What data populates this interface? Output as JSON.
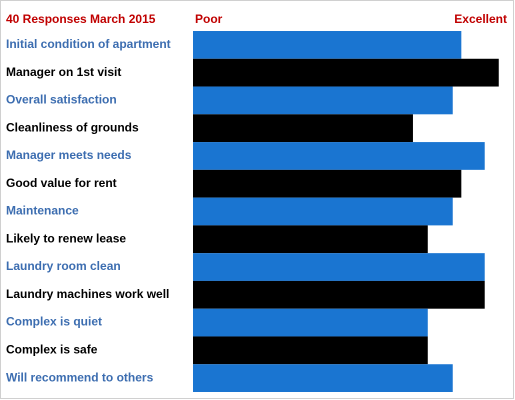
{
  "chart_data": {
    "type": "barh",
    "title": "40 Responses March 2015",
    "xlabel_left": "Poor",
    "xlabel_right": "Excellent",
    "categories": [
      "Initial condition of apartment",
      "Manager on 1st visit",
      "Overall satisfaction",
      "Cleanliness of grounds",
      "Manager meets needs",
      "Good value for rent",
      "Maintenance",
      "Likely to renew lease",
      "Laundry room clean",
      "Laundry machines work well",
      "Complex is quiet",
      "Complex is safe",
      "Will recommend to others"
    ],
    "values": [
      4.44,
      4.92,
      4.33,
      3.82,
      4.74,
      4.44,
      4.33,
      4.01,
      4.74,
      4.74,
      4.01,
      4.01,
      4.33
    ],
    "colors": [
      "#1a75d1",
      "#000000",
      "#1a75d1",
      "#000000",
      "#1a75d1",
      "#000000",
      "#1a75d1",
      "#000000",
      "#1a75d1",
      "#000000",
      "#1a75d1",
      "#000000",
      "#1a75d1"
    ],
    "label_colors": [
      "#3c6db0",
      "#000000",
      "#3c6db0",
      "#000000",
      "#3c6db0",
      "#000000",
      "#3c6db0",
      "#000000",
      "#3c6db0",
      "#000000",
      "#3c6db0",
      "#000000",
      "#3c6db0"
    ],
    "title_color": "#c00000",
    "xlim": [
      1,
      5
    ]
  }
}
